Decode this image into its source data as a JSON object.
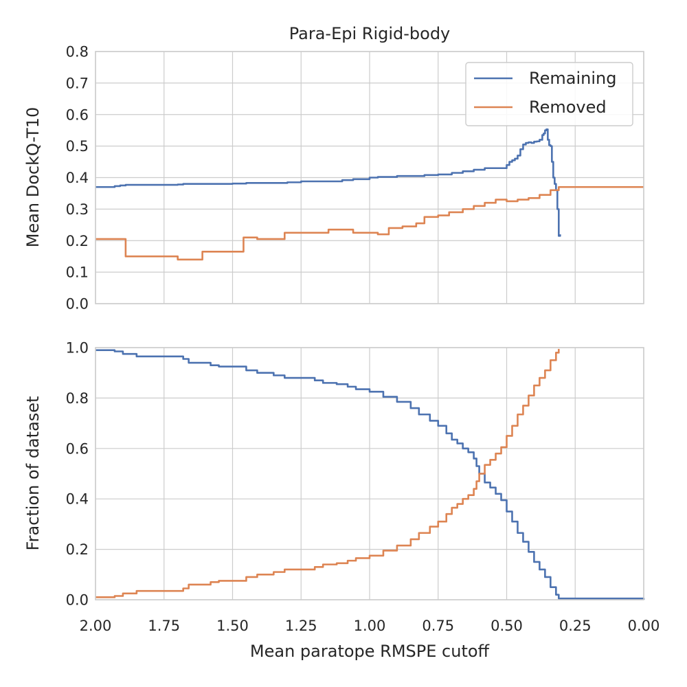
{
  "chart_data": [
    {
      "type": "line",
      "title": "Para-Epi Rigid-body",
      "xlabel": "",
      "ylabel": "Mean DockQ-T10",
      "xlim": [
        2.0,
        0.0
      ],
      "ylim": [
        0.0,
        0.8
      ],
      "xticks": [
        "2.00",
        "1.75",
        "1.50",
        "1.25",
        "1.00",
        "0.75",
        "0.50",
        "0.25",
        "0.00"
      ],
      "yticks": [
        "0.0",
        "0.1",
        "0.2",
        "0.3",
        "0.4",
        "0.5",
        "0.6",
        "0.7",
        "0.8"
      ],
      "grid": true,
      "legend": "top-right",
      "series": [
        {
          "name": "Remaining",
          "color": "#4c72b0",
          "x": [
            2.0,
            1.93,
            1.91,
            1.89,
            1.7,
            1.68,
            1.5,
            1.45,
            1.3,
            1.25,
            1.1,
            1.06,
            1.0,
            0.97,
            0.9,
            0.8,
            0.75,
            0.7,
            0.66,
            0.62,
            0.58,
            0.51,
            0.5,
            0.49,
            0.48,
            0.47,
            0.46,
            0.45,
            0.44,
            0.43,
            0.42,
            0.41,
            0.4,
            0.39,
            0.38,
            0.37,
            0.365,
            0.36,
            0.355,
            0.35,
            0.345,
            0.34,
            0.335,
            0.33,
            0.325,
            0.32,
            0.315,
            0.31,
            0.305
          ],
          "y": [
            0.37,
            0.373,
            0.375,
            0.377,
            0.378,
            0.38,
            0.381,
            0.383,
            0.385,
            0.388,
            0.392,
            0.395,
            0.4,
            0.402,
            0.405,
            0.408,
            0.41,
            0.415,
            0.42,
            0.425,
            0.43,
            0.43,
            0.44,
            0.45,
            0.455,
            0.46,
            0.47,
            0.49,
            0.505,
            0.51,
            0.512,
            0.51,
            0.514,
            0.515,
            0.52,
            0.535,
            0.54,
            0.55,
            0.553,
            0.52,
            0.503,
            0.5,
            0.45,
            0.4,
            0.38,
            0.36,
            0.3,
            0.215,
            0.22
          ]
        },
        {
          "name": "Removed",
          "color": "#dd8452",
          "x": [
            2.0,
            1.93,
            1.89,
            1.7,
            1.61,
            1.46,
            1.41,
            1.31,
            1.15,
            1.06,
            0.97,
            0.93,
            0.88,
            0.83,
            0.8,
            0.75,
            0.71,
            0.66,
            0.62,
            0.58,
            0.54,
            0.5,
            0.46,
            0.42,
            0.38,
            0.34,
            0.31,
            0.0
          ],
          "y": [
            0.205,
            0.205,
            0.15,
            0.14,
            0.165,
            0.21,
            0.205,
            0.225,
            0.235,
            0.225,
            0.22,
            0.24,
            0.245,
            0.255,
            0.275,
            0.28,
            0.29,
            0.3,
            0.31,
            0.32,
            0.33,
            0.325,
            0.33,
            0.335,
            0.345,
            0.36,
            0.37,
            0.37
          ]
        }
      ]
    },
    {
      "type": "line",
      "title": "",
      "xlabel": "Mean paratope RMSPE cutoff",
      "ylabel": "Fraction of dataset",
      "xlim": [
        2.0,
        0.0
      ],
      "ylim": [
        0.0,
        1.0
      ],
      "xticks": [
        "2.00",
        "1.75",
        "1.50",
        "1.25",
        "1.00",
        "0.75",
        "0.50",
        "0.25",
        "0.00"
      ],
      "yticks": [
        "0.0",
        "0.2",
        "0.4",
        "0.6",
        "0.8",
        "1.0"
      ],
      "grid": true,
      "series": [
        {
          "name": "Remaining",
          "color": "#4c72b0",
          "x": [
            2.0,
            1.93,
            1.9,
            1.85,
            1.68,
            1.66,
            1.58,
            1.55,
            1.45,
            1.41,
            1.35,
            1.31,
            1.2,
            1.17,
            1.12,
            1.08,
            1.05,
            1.0,
            0.95,
            0.9,
            0.85,
            0.82,
            0.78,
            0.75,
            0.72,
            0.7,
            0.68,
            0.66,
            0.64,
            0.62,
            0.61,
            0.6,
            0.58,
            0.56,
            0.54,
            0.52,
            0.5,
            0.48,
            0.46,
            0.44,
            0.42,
            0.4,
            0.38,
            0.36,
            0.34,
            0.32,
            0.31,
            0.0
          ],
          "y": [
            0.99,
            0.985,
            0.975,
            0.965,
            0.955,
            0.94,
            0.93,
            0.925,
            0.91,
            0.9,
            0.89,
            0.88,
            0.87,
            0.86,
            0.855,
            0.845,
            0.835,
            0.825,
            0.805,
            0.785,
            0.76,
            0.735,
            0.71,
            0.69,
            0.66,
            0.635,
            0.62,
            0.6,
            0.585,
            0.56,
            0.53,
            0.5,
            0.465,
            0.445,
            0.42,
            0.395,
            0.35,
            0.31,
            0.265,
            0.23,
            0.19,
            0.15,
            0.12,
            0.09,
            0.05,
            0.02,
            0.005,
            0.0
          ]
        },
        {
          "name": "Removed",
          "color": "#dd8452",
          "x": [
            2.0,
            1.93,
            1.9,
            1.85,
            1.68,
            1.66,
            1.58,
            1.55,
            1.45,
            1.41,
            1.35,
            1.31,
            1.2,
            1.17,
            1.12,
            1.08,
            1.05,
            1.0,
            0.95,
            0.9,
            0.85,
            0.82,
            0.78,
            0.75,
            0.72,
            0.7,
            0.68,
            0.66,
            0.64,
            0.62,
            0.61,
            0.6,
            0.58,
            0.56,
            0.54,
            0.52,
            0.5,
            0.48,
            0.46,
            0.44,
            0.42,
            0.4,
            0.38,
            0.36,
            0.34,
            0.32,
            0.31
          ],
          "y": [
            0.01,
            0.015,
            0.025,
            0.035,
            0.045,
            0.06,
            0.07,
            0.075,
            0.09,
            0.1,
            0.11,
            0.12,
            0.13,
            0.14,
            0.145,
            0.155,
            0.165,
            0.175,
            0.195,
            0.215,
            0.24,
            0.265,
            0.29,
            0.31,
            0.34,
            0.365,
            0.38,
            0.4,
            0.415,
            0.44,
            0.47,
            0.5,
            0.535,
            0.555,
            0.58,
            0.605,
            0.65,
            0.69,
            0.735,
            0.77,
            0.81,
            0.85,
            0.88,
            0.91,
            0.95,
            0.98,
            0.995
          ]
        }
      ]
    }
  ]
}
